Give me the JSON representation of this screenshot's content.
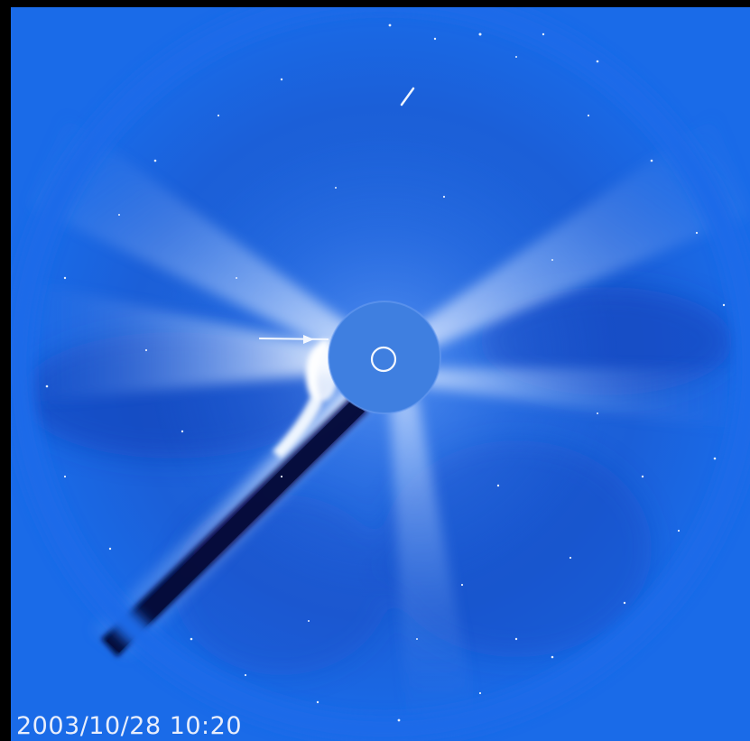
{
  "image": {
    "timestamp": "2003/10/28 10:20",
    "colors": {
      "background": "#000000",
      "field": "#1a6be8",
      "streamer": "#cfe2ff",
      "occulter": "#3f7fe0",
      "shadow": "#0a1e7a",
      "timestamp_text": "#e8eefc"
    },
    "icons": {
      "sun_marker": "sun-outline-icon",
      "comet_marker": "comet-pointer-icon"
    }
  }
}
